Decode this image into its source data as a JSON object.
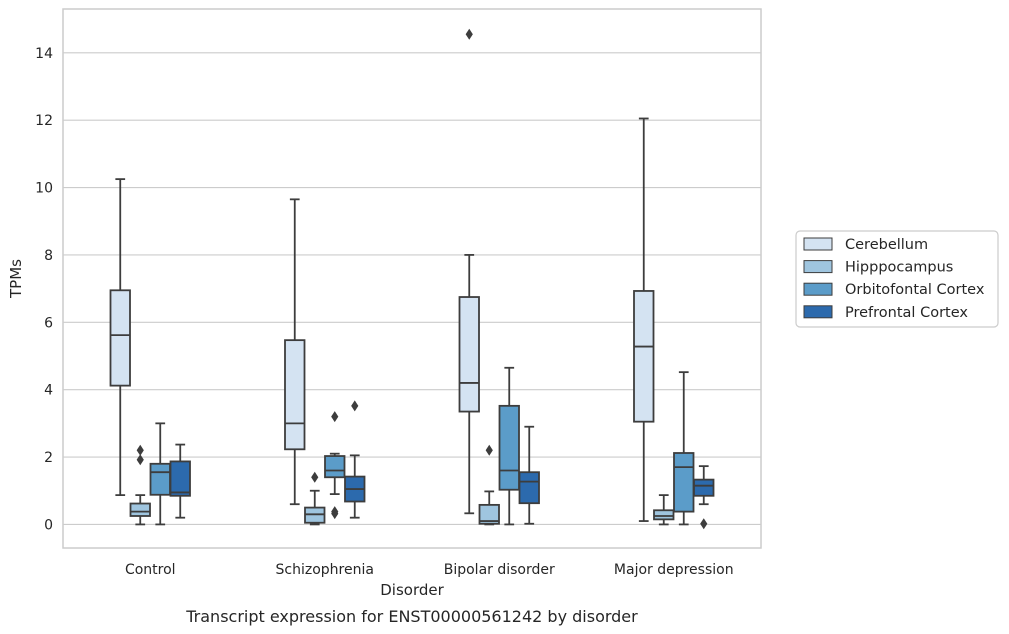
{
  "chart_data": {
    "type": "boxplot",
    "caption": "Transcript expression for ENST00000561242 by disorder",
    "xlabel": "Disorder",
    "ylabel": "TPMs",
    "ylim": [
      -0.7,
      15.3
    ],
    "yticks": [
      "0",
      "2",
      "4",
      "6",
      "8",
      "10",
      "12",
      "14"
    ],
    "grid": "horizontal",
    "legend_position": "right",
    "categories": [
      "Control",
      "Schizophrenia",
      "Bipolar disorder",
      "Major depression"
    ],
    "series": [
      {
        "name": "Cerebellum",
        "color": "#d4e3f2",
        "boxes": [
          {
            "whislo": 0.87,
            "q1": 4.12,
            "med": 5.62,
            "q3": 6.95,
            "whishi": 10.25,
            "fliers": []
          },
          {
            "whislo": 0.6,
            "q1": 2.23,
            "med": 3.0,
            "q3": 5.47,
            "whishi": 9.65,
            "fliers": []
          },
          {
            "whislo": 0.33,
            "q1": 3.35,
            "med": 4.2,
            "q3": 6.75,
            "whishi": 8.0,
            "fliers": [
              14.55
            ]
          },
          {
            "whislo": 0.1,
            "q1": 3.05,
            "med": 5.28,
            "q3": 6.93,
            "whishi": 12.05,
            "fliers": []
          }
        ]
      },
      {
        "name": "Hipppocampus",
        "color": "#9fc5df",
        "boxes": [
          {
            "whislo": 0.0,
            "q1": 0.25,
            "med": 0.38,
            "q3": 0.62,
            "whishi": 0.87,
            "fliers": [
              1.92,
              2.2
            ]
          },
          {
            "whislo": 0.0,
            "q1": 0.05,
            "med": 0.3,
            "q3": 0.5,
            "whishi": 1.0,
            "fliers": [
              1.4
            ]
          },
          {
            "whislo": 0.0,
            "q1": 0.02,
            "med": 0.1,
            "q3": 0.58,
            "whishi": 0.98,
            "fliers": [
              2.2
            ]
          },
          {
            "whislo": 0.0,
            "q1": 0.15,
            "med": 0.25,
            "q3": 0.42,
            "whishi": 0.87,
            "fliers": []
          }
        ]
      },
      {
        "name": "Orbitofontal Cortex",
        "color": "#5b9cc9",
        "boxes": [
          {
            "whislo": 0.0,
            "q1": 0.88,
            "med": 1.55,
            "q3": 1.8,
            "whishi": 3.0,
            "fliers": []
          },
          {
            "whislo": 0.9,
            "q1": 1.4,
            "med": 1.6,
            "q3": 2.03,
            "whishi": 2.1,
            "fliers": [
              0.32,
              0.38,
              3.2
            ]
          },
          {
            "whislo": 0.0,
            "q1": 1.03,
            "med": 1.6,
            "q3": 3.52,
            "whishi": 4.65,
            "fliers": []
          },
          {
            "whislo": 0.0,
            "q1": 0.38,
            "med": 1.7,
            "q3": 2.12,
            "whishi": 4.52,
            "fliers": []
          }
        ]
      },
      {
        "name": "Prefrontal Cortex",
        "color": "#2c6aad",
        "boxes": [
          {
            "whislo": 0.2,
            "q1": 0.85,
            "med": 0.95,
            "q3": 1.87,
            "whishi": 2.37,
            "fliers": []
          },
          {
            "whislo": 0.2,
            "q1": 0.68,
            "med": 1.05,
            "q3": 1.42,
            "whishi": 2.05,
            "fliers": [
              3.52
            ]
          },
          {
            "whislo": 0.02,
            "q1": 0.63,
            "med": 1.27,
            "q3": 1.55,
            "whishi": 2.9,
            "fliers": []
          },
          {
            "whislo": 0.6,
            "q1": 0.85,
            "med": 1.15,
            "q3": 1.33,
            "whishi": 1.73,
            "fliers": [
              0.02
            ]
          }
        ]
      }
    ]
  }
}
